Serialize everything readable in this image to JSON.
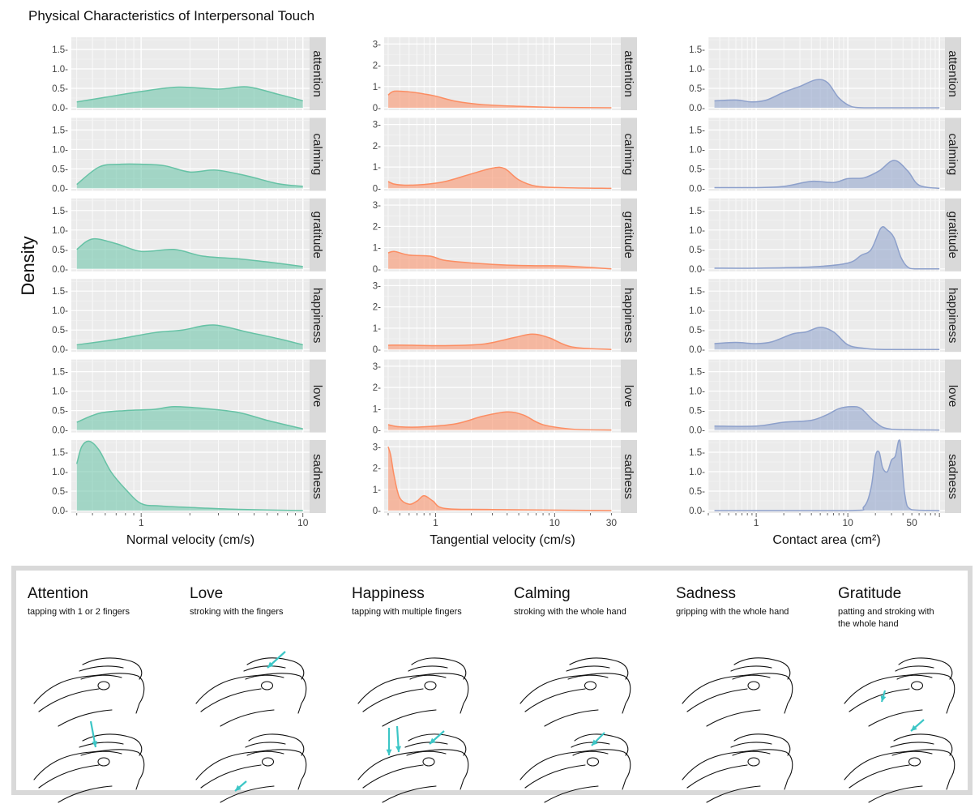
{
  "title": "Physical Characteristics of Interpersonal Touch",
  "ylabel": "Density",
  "colors": {
    "green": "#66c2a5",
    "orange": "#fc8d62",
    "blue": "#8da0cb",
    "panel": "#ebebeb",
    "strip": "#d9d9d9",
    "arrow": "#3cc6c6"
  },
  "chart_data": [
    {
      "type": "area",
      "xlabel": "Normal velocity (cm/s)",
      "xscale": "log",
      "xlim": [
        0.37,
        11
      ],
      "xticks": [
        1,
        10
      ],
      "xtick_labels": [
        "1",
        "10"
      ],
      "ylim": [
        0,
        1.75
      ],
      "yticks": [
        0.0,
        0.5,
        1.0,
        1.5
      ],
      "ytick_labels": [
        "0.0-",
        "0.5-",
        "1.0-",
        "1.5-"
      ],
      "color": "green",
      "facets": [
        {
          "label": "attention",
          "x": [
            0.4,
            0.6,
            1.0,
            1.7,
            3.0,
            4.5,
            7,
            10
          ],
          "y": [
            0.15,
            0.27,
            0.42,
            0.53,
            0.48,
            0.54,
            0.35,
            0.18
          ]
        },
        {
          "label": "calming",
          "x": [
            0.4,
            0.55,
            0.75,
            1.0,
            1.4,
            2.0,
            2.9,
            4.5,
            7,
            10
          ],
          "y": [
            0.1,
            0.55,
            0.62,
            0.62,
            0.58,
            0.42,
            0.47,
            0.32,
            0.12,
            0.05
          ]
        },
        {
          "label": "gratitude",
          "x": [
            0.4,
            0.5,
            0.7,
            1.0,
            1.6,
            2.4,
            4,
            6,
            10
          ],
          "y": [
            0.5,
            0.77,
            0.65,
            0.45,
            0.5,
            0.33,
            0.26,
            0.18,
            0.06
          ]
        },
        {
          "label": "happiness",
          "x": [
            0.4,
            0.7,
            1.2,
            1.8,
            2.8,
            4.5,
            7,
            10
          ],
          "y": [
            0.12,
            0.26,
            0.43,
            0.5,
            0.63,
            0.45,
            0.28,
            0.12
          ]
        },
        {
          "label": "love",
          "x": [
            0.4,
            0.55,
            0.8,
            1.2,
            1.6,
            2.5,
            4,
            6,
            10
          ],
          "y": [
            0.2,
            0.43,
            0.5,
            0.53,
            0.6,
            0.55,
            0.45,
            0.25,
            0.03
          ]
        },
        {
          "label": "sadness",
          "x": [
            0.4,
            0.43,
            0.48,
            0.55,
            0.65,
            0.8,
            1.0,
            1.3,
            2,
            4,
            10
          ],
          "y": [
            1.2,
            1.65,
            1.78,
            1.55,
            1.0,
            0.55,
            0.18,
            0.12,
            0.08,
            0.03,
            0.0
          ]
        }
      ]
    },
    {
      "type": "area",
      "xlabel": "Tangential velocity (cm/s)",
      "xscale": "log",
      "xlim": [
        0.37,
        36
      ],
      "xticks": [
        1,
        10,
        30
      ],
      "xtick_labels": [
        "1",
        "10",
        "30"
      ],
      "ylim": [
        0,
        3.2
      ],
      "yticks": [
        0,
        1,
        2,
        3
      ],
      "ytick_labels": [
        "0-",
        "1-",
        "2-",
        "3-"
      ],
      "color": "orange",
      "facets": [
        {
          "label": "attention",
          "x": [
            0.4,
            0.45,
            0.6,
            0.8,
            1.0,
            1.5,
            2.5,
            5,
            10,
            30
          ],
          "y": [
            0.6,
            0.78,
            0.75,
            0.65,
            0.55,
            0.3,
            0.15,
            0.07,
            0.02,
            0.0
          ]
        },
        {
          "label": "calming",
          "x": [
            0.4,
            0.45,
            0.55,
            0.8,
            1.2,
            2.0,
            3.0,
            3.8,
            5.0,
            7,
            12,
            30
          ],
          "y": [
            0.32,
            0.2,
            0.15,
            0.18,
            0.32,
            0.68,
            0.95,
            0.93,
            0.4,
            0.1,
            0.03,
            0.0
          ]
        },
        {
          "label": "gratitude",
          "x": [
            0.4,
            0.45,
            0.6,
            0.9,
            1.2,
            2.0,
            4,
            7,
            12,
            30
          ],
          "y": [
            0.75,
            0.82,
            0.65,
            0.6,
            0.4,
            0.28,
            0.18,
            0.15,
            0.14,
            0.0
          ]
        },
        {
          "label": "happiness",
          "x": [
            0.4,
            0.6,
            1.2,
            2.5,
            4.5,
            6.5,
            9,
            14,
            30
          ],
          "y": [
            0.2,
            0.2,
            0.18,
            0.25,
            0.55,
            0.72,
            0.55,
            0.12,
            0.0
          ]
        },
        {
          "label": "love",
          "x": [
            0.4,
            0.5,
            0.8,
            1.5,
            2.5,
            4.0,
            5.5,
            8,
            15,
            30
          ],
          "y": [
            0.25,
            0.15,
            0.15,
            0.3,
            0.65,
            0.85,
            0.7,
            0.25,
            0.03,
            0.0
          ]
        },
        {
          "label": "sadness",
          "x": [
            0.4,
            0.42,
            0.45,
            0.5,
            0.6,
            0.7,
            0.8,
            0.95,
            1.2,
            3,
            30
          ],
          "y": [
            3.0,
            2.6,
            1.6,
            0.6,
            0.3,
            0.45,
            0.7,
            0.45,
            0.1,
            0.05,
            0.0
          ]
        }
      ]
    },
    {
      "type": "area",
      "xlabel": "Contact area (cm²)",
      "xscale": "log",
      "xlim": [
        0.3,
        115
      ],
      "xticks": [
        1,
        10,
        50
      ],
      "xtick_labels": [
        "1",
        "10",
        "50"
      ],
      "ylim": [
        0,
        1.75
      ],
      "yticks": [
        0.0,
        0.5,
        1.0,
        1.5
      ],
      "ytick_labels": [
        "0.0-",
        "0.5-",
        "1.0-",
        "1.5-"
      ],
      "color": "blue",
      "facets": [
        {
          "label": "attention",
          "x": [
            0.35,
            0.6,
            0.9,
            1.3,
            2.0,
            3.0,
            4.5,
            6,
            8,
            11,
            15,
            30,
            100
          ],
          "y": [
            0.18,
            0.2,
            0.15,
            0.2,
            0.4,
            0.55,
            0.72,
            0.65,
            0.25,
            0.03,
            0.0,
            0.0,
            0.0
          ]
        },
        {
          "label": "calming",
          "x": [
            0.35,
            1.0,
            2.0,
            4,
            7,
            10,
            15,
            22,
            32,
            45,
            60,
            100
          ],
          "y": [
            0.02,
            0.02,
            0.05,
            0.18,
            0.15,
            0.25,
            0.27,
            0.45,
            0.72,
            0.45,
            0.08,
            0.0
          ]
        },
        {
          "label": "gratitude",
          "x": [
            0.35,
            1.0,
            4,
            10,
            14,
            18,
            23,
            27,
            32,
            38,
            45,
            55,
            100
          ],
          "y": [
            0.02,
            0.02,
            0.05,
            0.15,
            0.35,
            0.5,
            1.05,
            1.0,
            0.8,
            0.3,
            0.05,
            0.0,
            0.0
          ]
        },
        {
          "label": "happiness",
          "x": [
            0.35,
            0.6,
            1.0,
            1.5,
            2.5,
            3.5,
            5,
            7,
            10,
            15,
            25,
            100
          ],
          "y": [
            0.15,
            0.18,
            0.15,
            0.2,
            0.4,
            0.45,
            0.57,
            0.45,
            0.12,
            0.03,
            0.0,
            0.0
          ]
        },
        {
          "label": "love",
          "x": [
            0.35,
            1.0,
            2.0,
            4,
            6,
            8,
            11,
            14,
            20,
            30,
            100
          ],
          "y": [
            0.1,
            0.1,
            0.2,
            0.25,
            0.4,
            0.55,
            0.6,
            0.55,
            0.2,
            0.02,
            0.0
          ]
        },
        {
          "label": "sadness",
          "x": [
            0.35,
            10,
            15,
            18,
            20,
            22,
            24,
            27,
            30,
            33,
            36,
            38,
            42,
            50,
            100
          ],
          "y": [
            0.0,
            0.0,
            0.1,
            0.6,
            1.4,
            1.5,
            1.1,
            1.0,
            1.3,
            1.4,
            1.8,
            1.6,
            0.4,
            0.02,
            0.0
          ]
        }
      ]
    }
  ],
  "gestures": [
    {
      "name": "Attention",
      "desc": "tapping with 1 or 2 fingers",
      "arrows_top": [],
      "arrows_bottom": [
        [
          78,
          98,
          84,
          130
        ]
      ]
    },
    {
      "name": "Love",
      "desc": "stroking with the fingers",
      "arrows_top": [
        [
          118,
          12,
          96,
          32
        ]
      ],
      "arrows_bottom": [
        [
          70,
          172,
          56,
          184
        ]
      ]
    },
    {
      "name": "Happiness",
      "desc": "tapping with multiple fingers",
      "arrows_top": [],
      "arrows_bottom": [
        [
          46,
          106,
          46,
          140
        ],
        [
          56,
          104,
          58,
          136
        ],
        [
          114,
          110,
          96,
          126
        ]
      ]
    },
    {
      "name": "Calming",
      "desc": "stroking with the whole hand",
      "arrows_top": [],
      "arrows_bottom": [
        [
          112,
          112,
          96,
          128
        ]
      ]
    },
    {
      "name": "Sadness",
      "desc": "gripping with the whole hand",
      "arrows_top": [],
      "arrows_bottom": []
    },
    {
      "name": "Gratitude",
      "desc1": "patting and stroking with",
      "desc2": "the whole hand",
      "arrows_top": [
        [
          58,
          60,
          54,
          74
        ]
      ],
      "arrows_bottom": [
        [
          106,
          96,
          90,
          110
        ]
      ]
    }
  ]
}
